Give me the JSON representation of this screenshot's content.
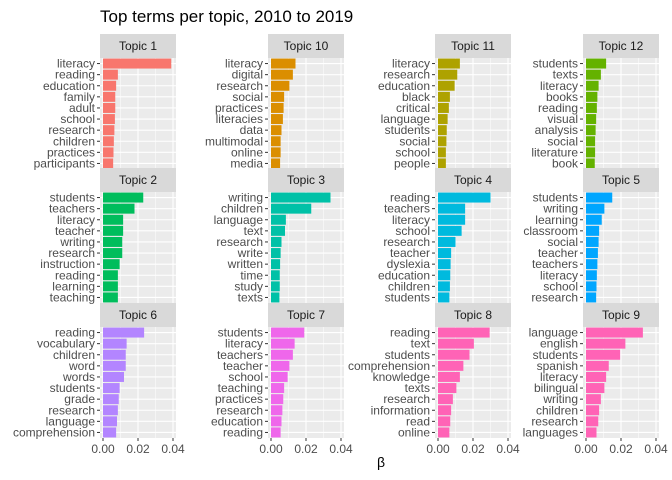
{
  "chart_data": {
    "type": "bar",
    "orientation": "horizontal",
    "layout": "faceted grid, 4 columns x 3 rows",
    "title": "Top terms per topic, 2010 to 2019",
    "xlabel": "β",
    "ylabel": "",
    "xlim": [
      0,
      0.04
    ],
    "xticks": [
      "0.00",
      "0.02",
      "0.04"
    ],
    "grid": true,
    "legend": "none",
    "panel_background": "#ebebeb",
    "strip_background": "#d9d9d9",
    "facets": [
      {
        "name": "Topic 1",
        "color": "#F8766D",
        "terms": [
          "literacy",
          "reading",
          "education",
          "family",
          "adult",
          "school",
          "research",
          "children",
          "practices",
          "participants"
        ],
        "values": [
          0.039,
          0.0085,
          0.0075,
          0.007,
          0.007,
          0.0068,
          0.0065,
          0.0062,
          0.006,
          0.0058
        ]
      },
      {
        "name": "Topic 10",
        "color": "#DB8E00",
        "terms": [
          "literacy",
          "digital",
          "research",
          "social",
          "practices",
          "literacies",
          "data",
          "multimodal",
          "online",
          "media"
        ],
        "values": [
          0.014,
          0.0125,
          0.0105,
          0.0075,
          0.0072,
          0.0068,
          0.006,
          0.0055,
          0.0055,
          0.0052
        ]
      },
      {
        "name": "Topic 11",
        "color": "#AEA200",
        "terms": [
          "literacy",
          "research",
          "education",
          "black",
          "critical",
          "language",
          "students",
          "social",
          "school",
          "people"
        ],
        "values": [
          0.0125,
          0.011,
          0.0095,
          0.0068,
          0.0062,
          0.0055,
          0.005,
          0.0048,
          0.0045,
          0.0045
        ]
      },
      {
        "name": "Topic 12",
        "color": "#64B200",
        "terms": [
          "students",
          "texts",
          "literacy",
          "books",
          "reading",
          "visual",
          "analysis",
          "social",
          "literature",
          "book"
        ],
        "values": [
          0.0115,
          0.0085,
          0.0072,
          0.0065,
          0.0062,
          0.0058,
          0.0055,
          0.0052,
          0.0052,
          0.005
        ]
      },
      {
        "name": "Topic 2",
        "color": "#00BD5C",
        "terms": [
          "students",
          "teachers",
          "literacy",
          "teacher",
          "writing",
          "research",
          "instruction",
          "reading",
          "learning",
          "teaching"
        ],
        "values": [
          0.023,
          0.018,
          0.0115,
          0.0115,
          0.011,
          0.011,
          0.0095,
          0.0085,
          0.0085,
          0.0085
        ]
      },
      {
        "name": "Topic 3",
        "color": "#00C1A7",
        "terms": [
          "writing",
          "children",
          "language",
          "text",
          "research",
          "write",
          "written",
          "time",
          "study",
          "texts"
        ],
        "values": [
          0.034,
          0.023,
          0.0085,
          0.008,
          0.006,
          0.0055,
          0.0052,
          0.005,
          0.005,
          0.0048
        ]
      },
      {
        "name": "Topic 4",
        "color": "#00BADE",
        "terms": [
          "reading",
          "teachers",
          "literacy",
          "school",
          "research",
          "teacher",
          "dyslexia",
          "education",
          "children",
          "students"
        ],
        "values": [
          0.03,
          0.0155,
          0.0155,
          0.0135,
          0.01,
          0.0075,
          0.0072,
          0.007,
          0.0068,
          0.0065
        ]
      },
      {
        "name": "Topic 5",
        "color": "#00A6FF",
        "terms": [
          "students",
          "writing",
          "learning",
          "classroom",
          "social",
          "teacher",
          "teachers",
          "literacy",
          "school",
          "research"
        ],
        "values": [
          0.015,
          0.0105,
          0.009,
          0.0075,
          0.0072,
          0.0068,
          0.0065,
          0.0062,
          0.006,
          0.0058
        ]
      },
      {
        "name": "Topic 6",
        "color": "#B385FF",
        "terms": [
          "reading",
          "vocabulary",
          "children",
          "word",
          "words",
          "students",
          "grade",
          "research",
          "language",
          "comprehension"
        ],
        "values": [
          0.0235,
          0.0135,
          0.013,
          0.013,
          0.012,
          0.0095,
          0.009,
          0.0085,
          0.008,
          0.0075
        ]
      },
      {
        "name": "Topic 7",
        "color": "#EF67EB",
        "terms": [
          "students",
          "literacy",
          "teachers",
          "teacher",
          "school",
          "teaching",
          "practices",
          "research",
          "education",
          "reading"
        ],
        "values": [
          0.019,
          0.0135,
          0.0125,
          0.0105,
          0.0095,
          0.0075,
          0.007,
          0.0065,
          0.006,
          0.0055
        ]
      },
      {
        "name": "Topic 8",
        "color": "#FF63B6",
        "terms": [
          "reading",
          "text",
          "students",
          "comprehension",
          "knowledge",
          "texts",
          "research",
          "information",
          "read",
          "online"
        ],
        "values": [
          0.0295,
          0.0205,
          0.018,
          0.0145,
          0.0125,
          0.0105,
          0.0085,
          0.0075,
          0.007,
          0.0065
        ]
      },
      {
        "name": "Topic 9",
        "color": "#FF63B6",
        "terms": [
          "language",
          "english",
          "students",
          "spanish",
          "literacy",
          "bilingual",
          "writing",
          "children",
          "research",
          "languages"
        ],
        "values": [
          0.0325,
          0.0225,
          0.0195,
          0.013,
          0.0115,
          0.0105,
          0.0085,
          0.0075,
          0.007,
          0.006
        ]
      }
    ]
  }
}
